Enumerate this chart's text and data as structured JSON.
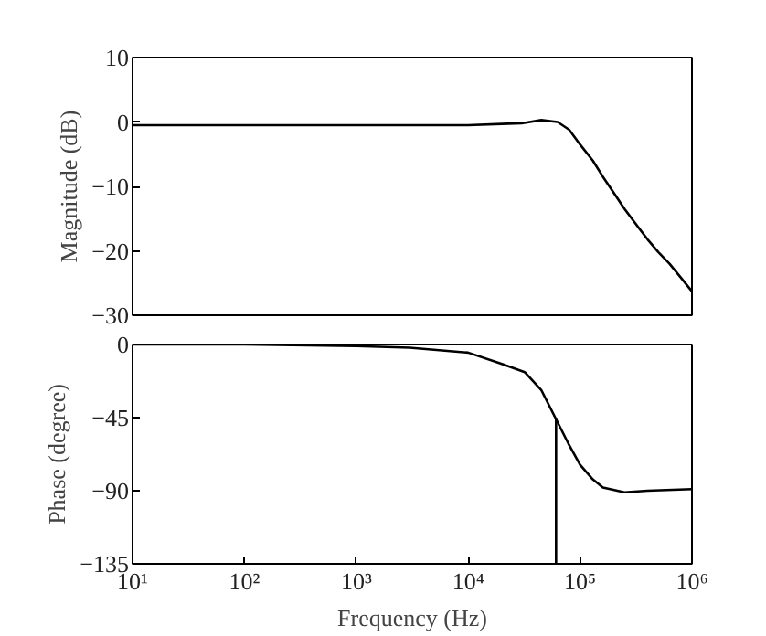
{
  "chart_data": [
    {
      "type": "line",
      "ylabel": "Magnitude (dB)",
      "log": "x",
      "grid": false,
      "tick_labels": "y",
      "xlim": [
        10,
        1000000
      ],
      "ylim": [
        -30,
        10
      ],
      "yticks": [
        -30,
        -20,
        -10,
        0,
        10
      ],
      "x": [
        10,
        100,
        1000,
        10000,
        20000,
        30000,
        45000,
        63000,
        80000,
        100000,
        130000,
        160000,
        200000,
        250000,
        320000,
        400000,
        500000,
        630000,
        800000,
        1000000
      ],
      "series": [
        {
          "color": "#000000",
          "values": [
            -0.5,
            -0.5,
            -0.5,
            -0.5,
            -0.3,
            -0.2,
            0.3,
            0,
            -1.2,
            -3.5,
            -6,
            -8.5,
            -11,
            -13.5,
            -16,
            -18.2,
            -20.2,
            -22,
            -24.2,
            -26.3
          ]
        }
      ]
    },
    {
      "type": "line",
      "xlabel": "Frequency (Hz)",
      "ylabel": "Phase (degree)",
      "log": "x",
      "grid": false,
      "xlim": [
        10,
        1000000
      ],
      "ylim": [
        -135,
        0
      ],
      "yticks": [
        -135,
        -90,
        -45,
        0
      ],
      "xticks": [
        {
          "value": 10,
          "label": "10¹"
        },
        {
          "value": 100,
          "label": "10²"
        },
        {
          "value": 1000,
          "label": "10³"
        },
        {
          "value": 10000,
          "label": "10⁴"
        },
        {
          "value": 100000,
          "label": "10⁵"
        },
        {
          "value": 1000000,
          "label": "10⁶"
        }
      ],
      "x": [
        10,
        100,
        1000,
        3000,
        10000,
        20000,
        32000,
        45000,
        60000,
        80000,
        100000,
        130000,
        160000,
        250000,
        400000,
        1000000
      ],
      "series": [
        {
          "color": "#000000",
          "values": [
            0,
            0,
            -1,
            -2,
            -5,
            -12,
            -17,
            -28,
            -45,
            -62,
            -74,
            -83,
            -88,
            -91,
            -90,
            -89
          ]
        },
        {
          "color": "#000000",
          "x": [
            61000,
            61000
          ],
          "values": [
            -135,
            -45
          ]
        }
      ]
    }
  ]
}
